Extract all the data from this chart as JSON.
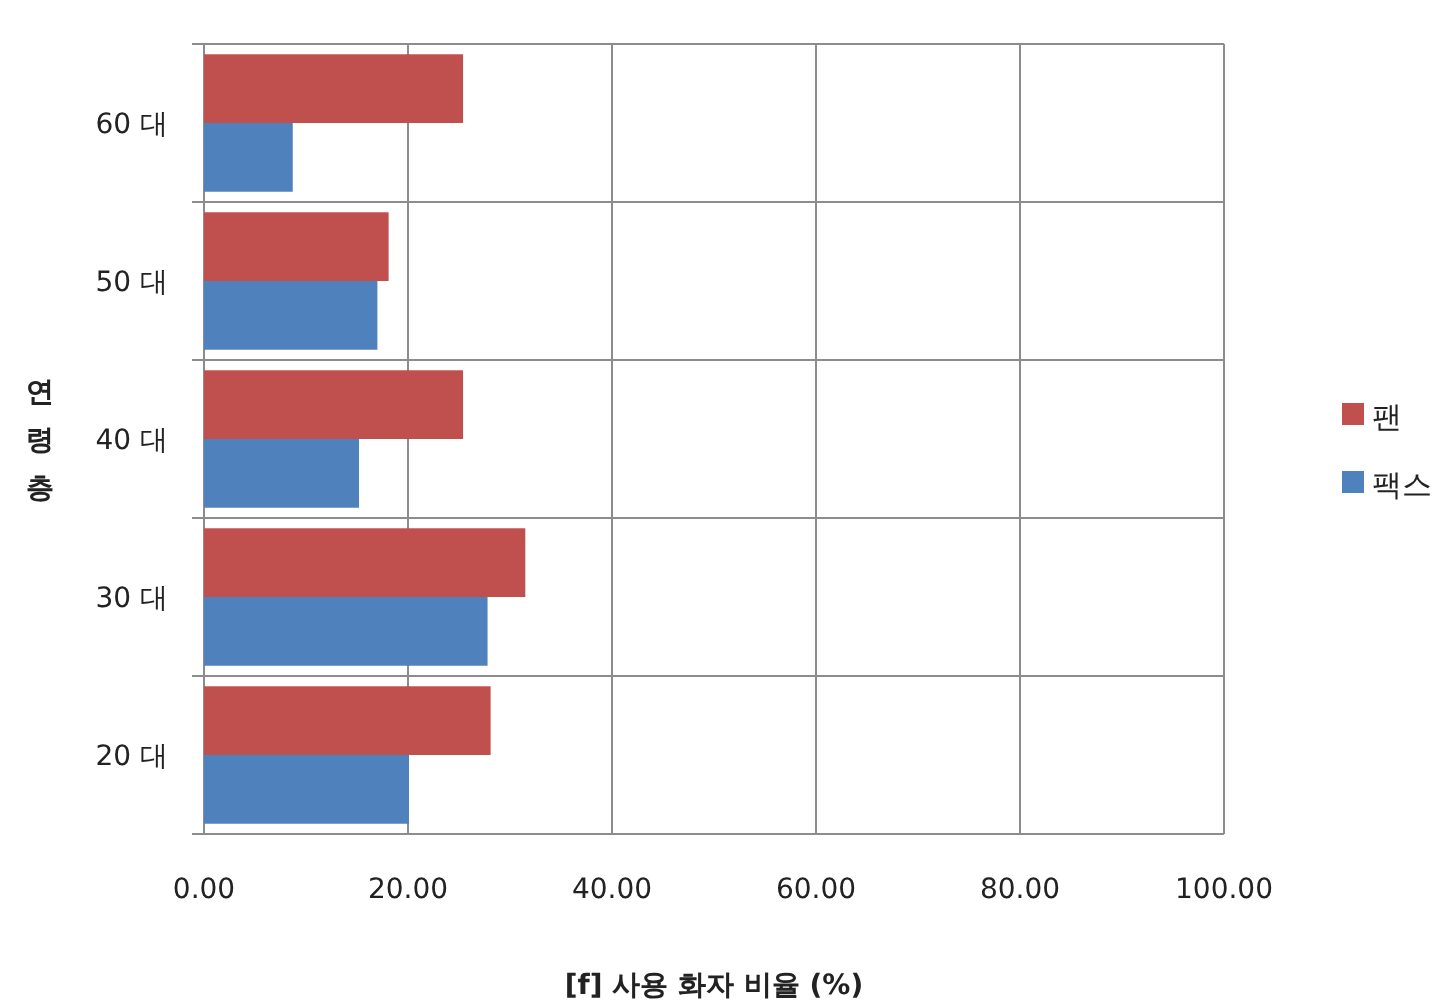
{
  "chart_data": {
    "type": "bar",
    "orientation": "horizontal",
    "xlabel": "[f] 사용 화자 비율 (%)",
    "ylabel": "연령층",
    "categories": [
      "60 대",
      "50 대",
      "40 대",
      "30 대",
      "20 대"
    ],
    "series": [
      {
        "name": "팬",
        "color": "#c0504d",
        "values": [
          25.4,
          18.1,
          25.4,
          31.5,
          28.1
        ]
      },
      {
        "name": "팩스",
        "color": "#4f81bd",
        "values": [
          8.7,
          17.0,
          15.2,
          27.8,
          20.1
        ]
      }
    ],
    "xlim": [
      0,
      100
    ],
    "xticks": [
      {
        "value": 0,
        "label": "0.00"
      },
      {
        "value": 20,
        "label": "20.00"
      },
      {
        "value": 40,
        "label": "40.00"
      },
      {
        "value": 60,
        "label": "60.00"
      },
      {
        "value": 80,
        "label": "80.00"
      },
      {
        "value": 100,
        "label": "100.00"
      }
    ],
    "grid": true,
    "legend": "right"
  }
}
